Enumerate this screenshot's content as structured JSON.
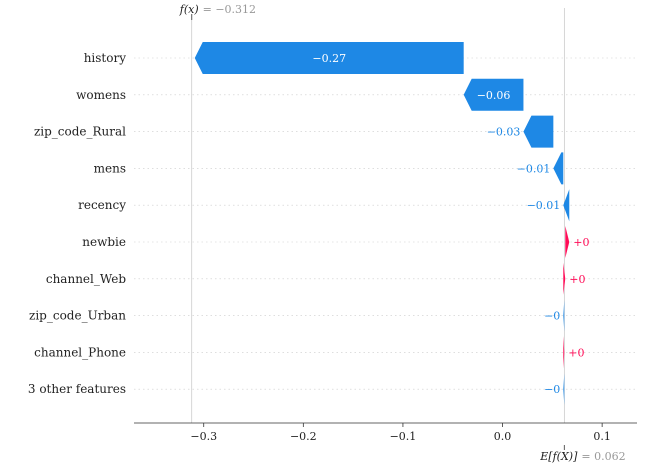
{
  "colors": {
    "negative": "#1e88e5",
    "positive": "#ff0d57"
  },
  "chart_data": {
    "type": "waterfall",
    "title": "",
    "xlabel": "",
    "ylabel": "",
    "fx_label": "f(x)",
    "fx_value_text": "= −0.312",
    "fx_value": -0.312,
    "ex_label": "E[f(X)]",
    "ex_value_text": "= 0.062",
    "ex_value": 0.062,
    "xlim": [
      -0.37,
      0.135
    ],
    "xticks": [
      -0.3,
      -0.2,
      -0.1,
      0.0,
      0.1
    ],
    "xtick_labels": [
      "−0.3",
      "−0.2",
      "−0.1",
      "0.0",
      "0.1"
    ],
    "features": [
      {
        "name": "history",
        "value": -0.27,
        "label": "−0.27"
      },
      {
        "name": "womens",
        "value": -0.06,
        "label": "−0.06"
      },
      {
        "name": "zip_code_Rural",
        "value": -0.03,
        "label": "−0.03"
      },
      {
        "name": "mens",
        "value": -0.01,
        "label": "−0.01"
      },
      {
        "name": "recency",
        "value": -0.006,
        "label": "−0.01"
      },
      {
        "name": "newbie",
        "value": 0.004,
        "label": "+0"
      },
      {
        "name": "channel_Web",
        "value": 0.002,
        "label": "+0"
      },
      {
        "name": "zip_code_Urban",
        "value": -0.001,
        "label": "−0"
      },
      {
        "name": "channel_Phone",
        "value": 0.001,
        "label": "+0"
      },
      {
        "name": "3 other features",
        "value": -0.001,
        "label": "−0"
      }
    ]
  }
}
